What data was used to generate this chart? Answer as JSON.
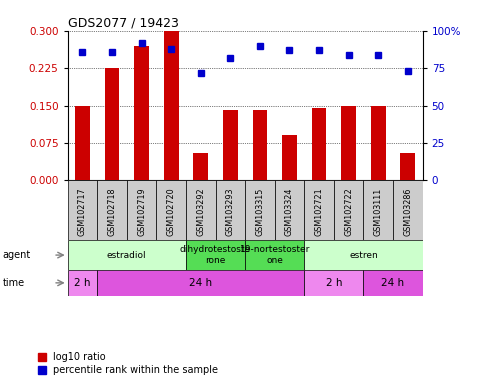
{
  "title": "GDS2077 / 19423",
  "samples": [
    "GSM102717",
    "GSM102718",
    "GSM102719",
    "GSM102720",
    "GSM103292",
    "GSM103293",
    "GSM103315",
    "GSM103324",
    "GSM102721",
    "GSM102722",
    "GSM103111",
    "GSM103286"
  ],
  "log10_ratio": [
    0.15,
    0.225,
    0.27,
    0.3,
    0.055,
    0.14,
    0.14,
    0.09,
    0.145,
    0.15,
    0.15,
    0.055
  ],
  "percentile_rank": [
    86,
    86,
    92,
    88,
    72,
    82,
    90,
    87,
    87,
    84,
    84,
    73
  ],
  "bar_color": "#cc0000",
  "dot_color": "#0000cc",
  "ylim_left": [
    0,
    0.3
  ],
  "ylim_right": [
    0,
    100
  ],
  "yticks_left": [
    0,
    0.075,
    0.15,
    0.225,
    0.3
  ],
  "yticks_right": [
    0,
    25,
    50,
    75,
    100
  ],
  "agent_groups": [
    {
      "label": "estradiol",
      "start": 0,
      "end": 4,
      "color": "#ccffcc"
    },
    {
      "label": "dihydrotestoste\nrone",
      "start": 4,
      "end": 6,
      "color": "#55dd55"
    },
    {
      "label": "19-nortestoster\none",
      "start": 6,
      "end": 8,
      "color": "#55dd55"
    },
    {
      "label": "estren",
      "start": 8,
      "end": 12,
      "color": "#ccffcc"
    }
  ],
  "time_groups": [
    {
      "label": "2 h",
      "start": 0,
      "end": 1,
      "color": "#ee88ee"
    },
    {
      "label": "24 h",
      "start": 1,
      "end": 8,
      "color": "#dd55dd"
    },
    {
      "label": "2 h",
      "start": 8,
      "end": 10,
      "color": "#ee88ee"
    },
    {
      "label": "24 h",
      "start": 10,
      "end": 12,
      "color": "#dd55dd"
    }
  ],
  "sample_bg_color": "#cccccc",
  "legend_red_label": "log10 ratio",
  "legend_blue_label": "percentile rank within the sample",
  "bar_width": 0.5
}
